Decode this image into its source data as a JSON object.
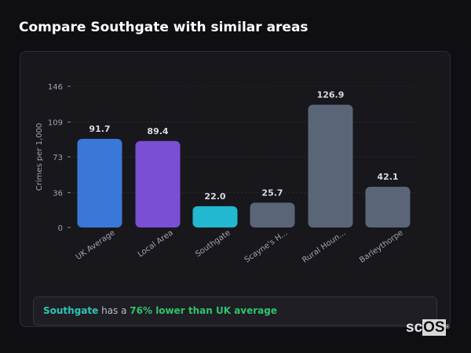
{
  "title": "Compare Southgate with similar areas",
  "chart_data": {
    "type": "bar",
    "ylabel": "Crimes per 1,000",
    "ylim": [
      0,
      146
    ],
    "yticks": [
      0,
      36,
      73,
      109,
      146
    ],
    "grid": true,
    "categories": [
      "UK Average",
      "Local Area",
      "Southgate",
      "Scayne's H...",
      "Rural Houn...",
      "Barleythorpe"
    ],
    "values": [
      91.7,
      89.4,
      22.0,
      25.7,
      126.9,
      42.1
    ],
    "data_labels": [
      "91.7",
      "89.4",
      "22.0",
      "25.7",
      "126.9",
      "42.1"
    ],
    "colors": [
      "#3a78d8",
      "#7b4fd4",
      "#22b8cf",
      "#5a6678",
      "#5a6678",
      "#5a6678"
    ]
  },
  "insight": {
    "area": "Southgate",
    "middle": " has a ",
    "comparison": "76% lower than UK average"
  },
  "logo": {
    "text1": "sc",
    "text2": "OS",
    "mark": "®"
  }
}
